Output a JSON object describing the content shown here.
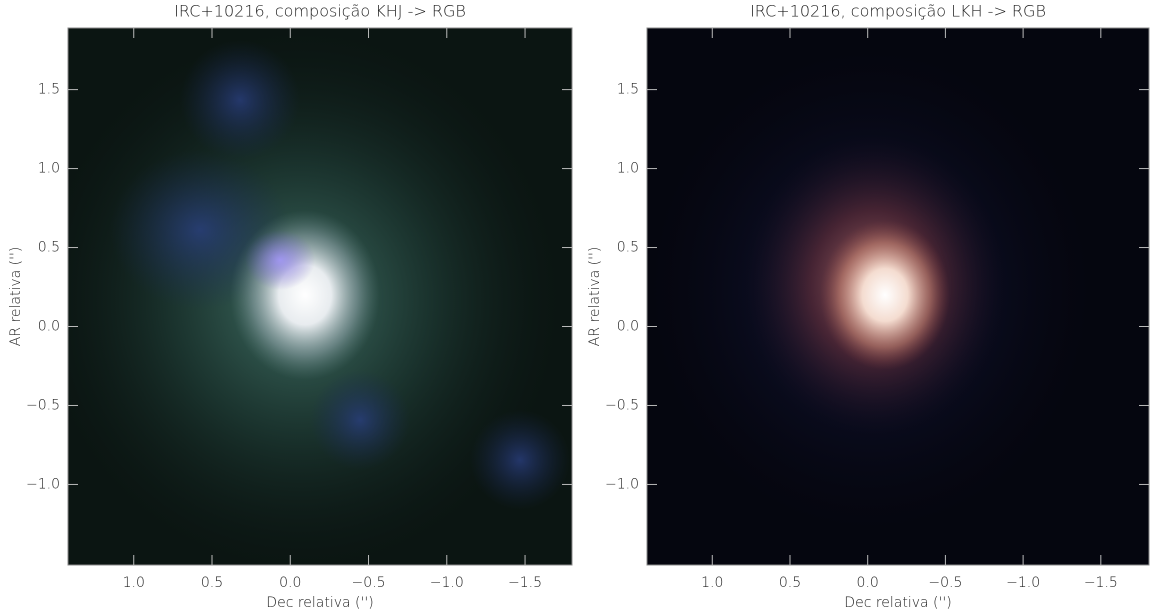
{
  "chart_data": [
    {
      "type": "image",
      "title": "IRC+10216, composição KHJ -> RGB",
      "x_label": "Dec relativa ('')",
      "y_label": "AR relativa ('')",
      "xlim": [
        1.42,
        -1.8
      ],
      "ylim": [
        -1.51,
        1.89
      ],
      "xticks": [
        {
          "value": 1.0,
          "label": "1.0"
        },
        0.5,
        {
          "value": 0.0,
          "label": "0.0"
        },
        {
          "value": -0.5,
          "label": "−0.5"
        },
        {
          "value": -1.0,
          "label": "−1.0"
        },
        {
          "value": -1.5,
          "label": "−1.5"
        }
      ],
      "yticks": [
        {
          "value": -1.0,
          "label": "−1.0"
        },
        {
          "value": -0.5,
          "label": "−0.5"
        },
        {
          "value": 0.0,
          "label": "0.0"
        },
        0.5,
        {
          "value": 1.0,
          "label": "1.0"
        },
        1.5
      ]
    },
    {
      "type": "image",
      "title": "IRC+10216, composição LKH -> RGB",
      "x_label": "Dec relativa ('')",
      "y_label": "AR relativa ('')",
      "xlim": [
        1.42,
        -1.81
      ],
      "ylim": [
        -1.51,
        1.89
      ],
      "xticks": [
        {
          "value": 1.0,
          "label": "1.0"
        },
        0.5,
        {
          "value": 0.0,
          "label": "0.0"
        },
        {
          "value": -0.5,
          "label": "−0.5"
        },
        {
          "value": -1.0,
          "label": "−1.0"
        },
        {
          "value": -1.5,
          "label": "−1.5"
        }
      ],
      "yticks": [
        {
          "value": -1.0,
          "label": "−1.0"
        },
        {
          "value": -0.5,
          "label": "−0.5"
        },
        {
          "value": 0.0,
          "label": "0.0"
        },
        0.5,
        {
          "value": 1.0,
          "label": "1.0"
        },
        1.5
      ]
    }
  ]
}
